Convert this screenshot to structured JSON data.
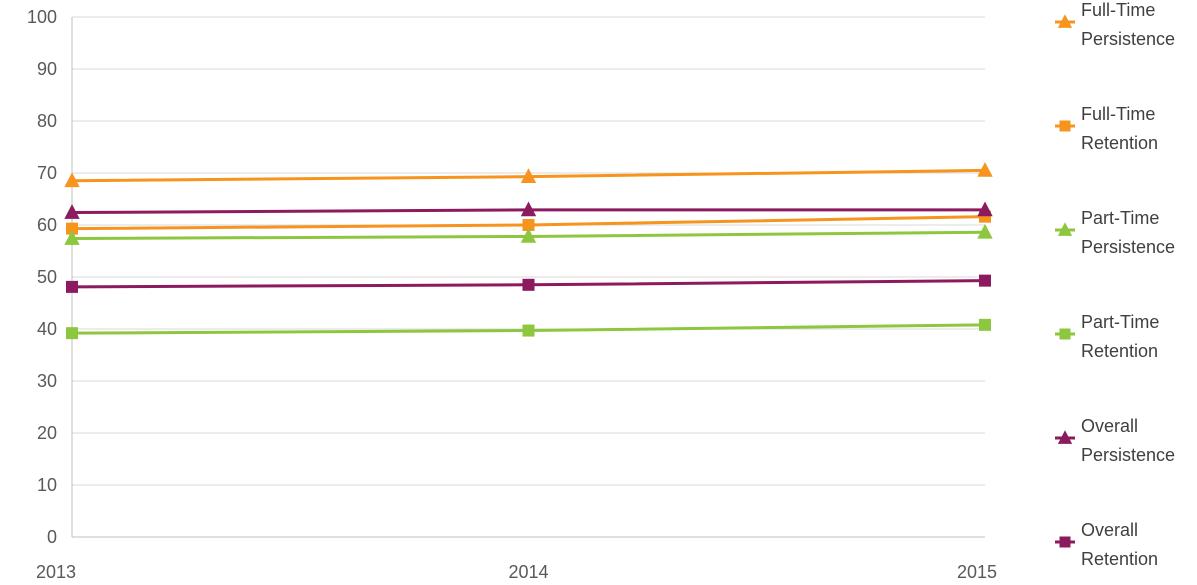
{
  "chart_data": {
    "type": "line",
    "title": "",
    "xlabel": "",
    "ylabel": "",
    "categories": [
      "2013",
      "2014",
      "2015"
    ],
    "y_ticks": [
      "0",
      "10",
      "20",
      "30",
      "40",
      "50",
      "60",
      "70",
      "80",
      "90",
      "100"
    ],
    "ylim": [
      0,
      100
    ],
    "grid": "horizontal",
    "legend_position": "right",
    "series": [
      {
        "name": "Full-Time Persistence",
        "label_lines": [
          "Full-Time",
          "Persistence"
        ],
        "values": [
          68.5,
          69.3,
          70.5
        ],
        "color": "#f7941d",
        "marker": "triangle"
      },
      {
        "name": "Full-Time Retention",
        "label_lines": [
          "Full-Time",
          "Retention"
        ],
        "values": [
          59.3,
          60.0,
          61.6
        ],
        "color": "#f7941d",
        "marker": "square"
      },
      {
        "name": "Part-Time Persistence",
        "label_lines": [
          "Part-Time",
          "Persistence"
        ],
        "values": [
          57.4,
          57.8,
          58.6
        ],
        "color": "#8dc63f",
        "marker": "triangle"
      },
      {
        "name": "Part-Time Retention",
        "label_lines": [
          "Part-Time",
          "Retention"
        ],
        "values": [
          39.2,
          39.7,
          40.8
        ],
        "color": "#8dc63f",
        "marker": "square"
      },
      {
        "name": "Overall Persistence",
        "label_lines": [
          "Overall",
          "Persistence"
        ],
        "values": [
          62.4,
          62.9,
          62.9
        ],
        "color": "#8b1a5e",
        "marker": "triangle"
      },
      {
        "name": "Overall Retention",
        "label_lines": [
          "Overall",
          "Retention"
        ],
        "values": [
          48.1,
          48.5,
          49.3
        ],
        "color": "#8b1a5e",
        "marker": "square"
      }
    ]
  }
}
